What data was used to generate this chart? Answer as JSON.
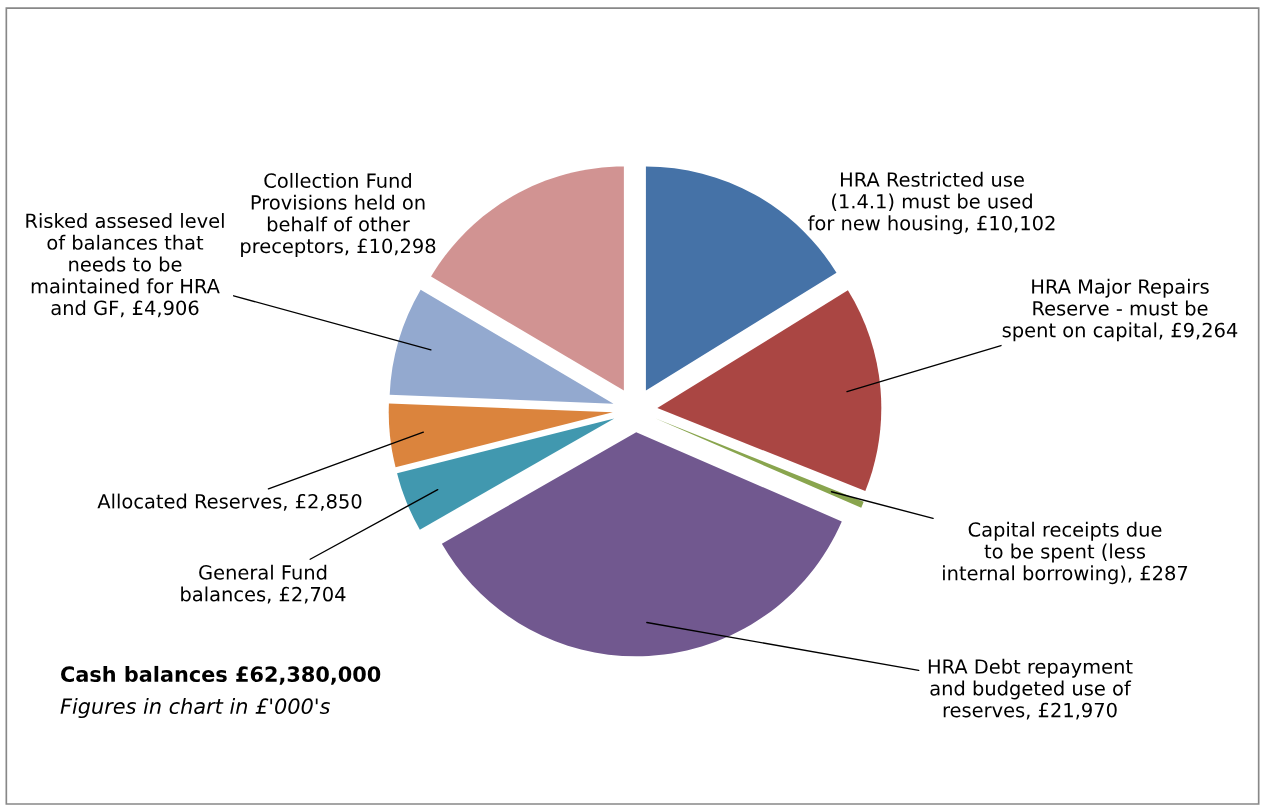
{
  "chart_data": {
    "type": "pie",
    "categories": [
      "HRA Restricted use\n(1.4.1) must be used\nfor new housing",
      "HRA Major Repairs\nReserve - must be\nspent on capital",
      "Capital receipts due\nto be spent (less\ninternal borrowing)",
      "HRA Debt repayment\nand budgeted use of\nreserves",
      "General Fund\nbalances",
      "Allocated Reserves",
      "Risked assesed level\nof balances that\nneeds to be\nmaintained for HRA\nand GF",
      "Collection Fund\nProvisions held on\nbehalf of other\npreceptors"
    ],
    "values": [
      10102,
      9264,
      287,
      21970,
      2704,
      2850,
      4906,
      10298
    ],
    "value_labels": [
      "£10,102",
      "£9,264",
      "£287",
      "£21,970",
      "£2,704",
      "£2,850",
      "£4,906",
      "£10,298"
    ],
    "colors": [
      "#4572a7",
      "#aa4643",
      "#89a54e",
      "#71588f",
      "#4198af",
      "#db843d",
      "#93a9cf",
      "#d19392"
    ],
    "annotations": [
      "Cash balances £62,380,000",
      "Figures in chart in £'000's"
    ]
  }
}
